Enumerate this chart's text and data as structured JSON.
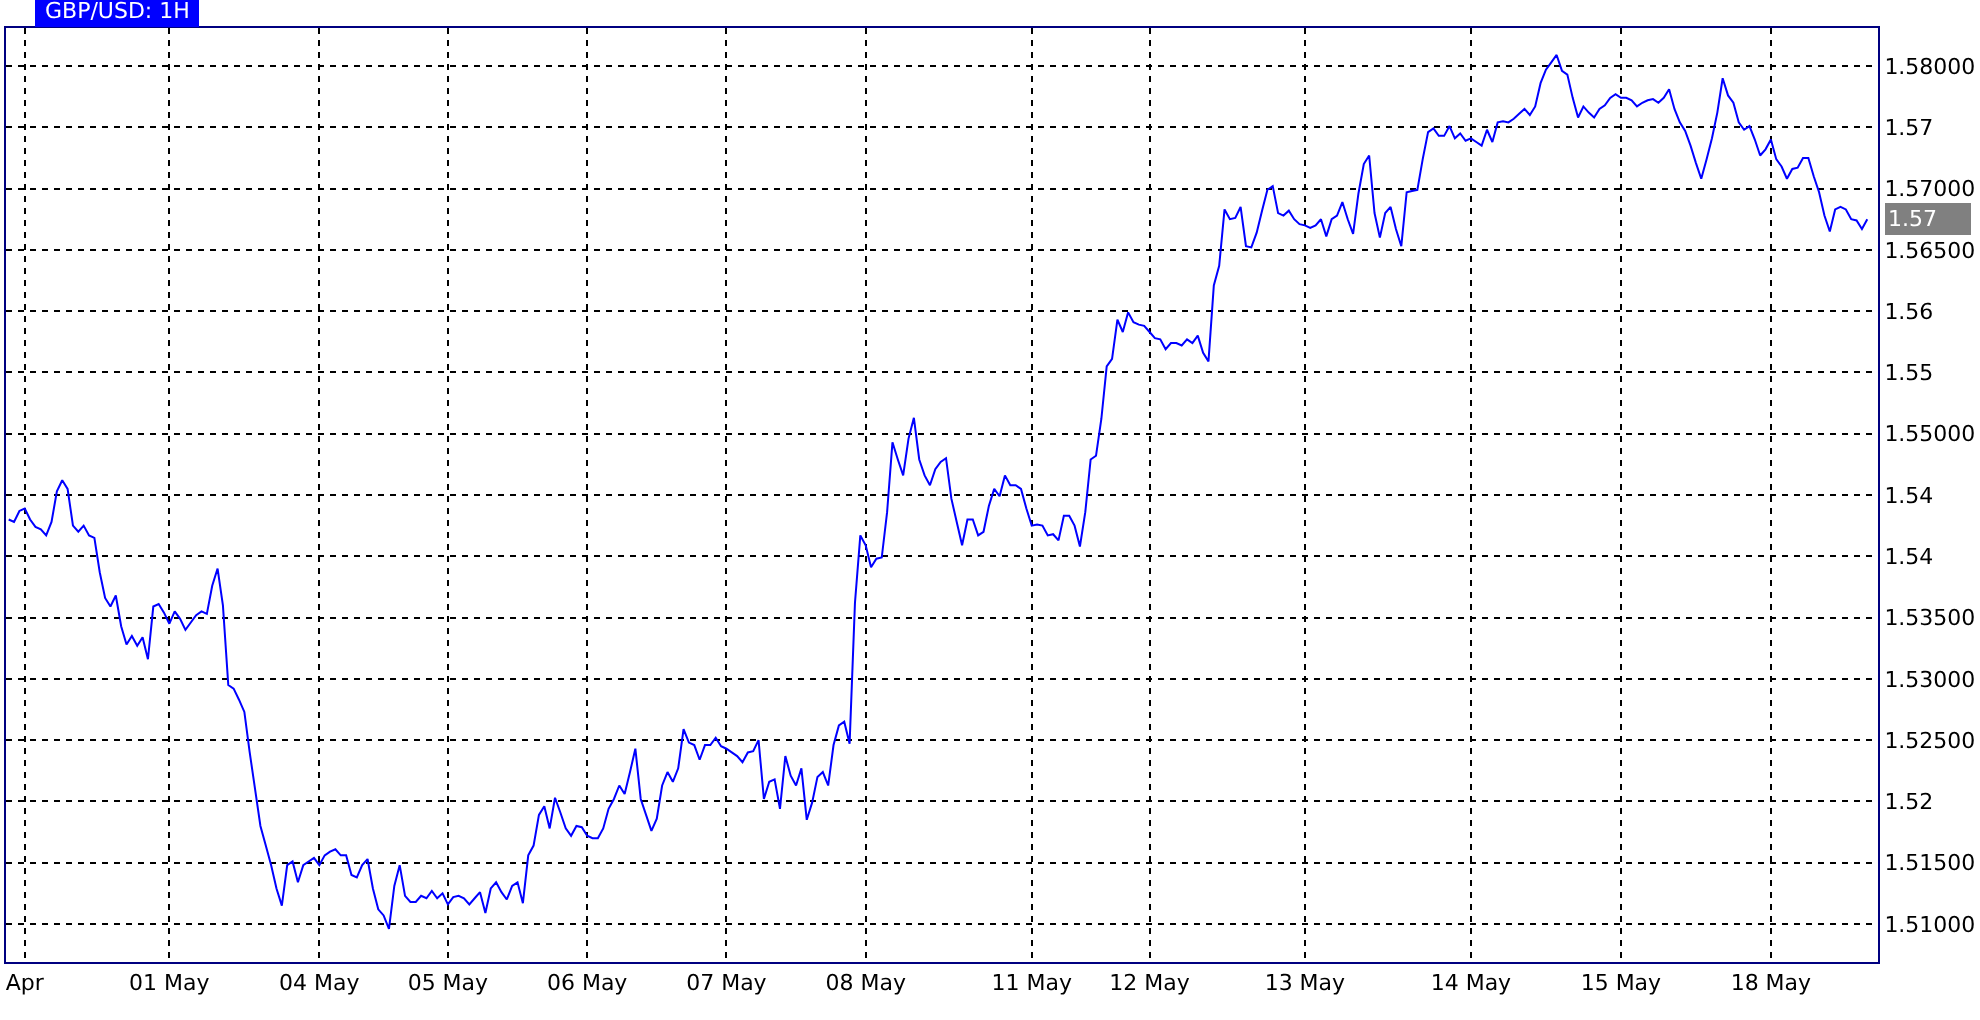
{
  "chart_data": {
    "type": "line",
    "title": "GBP/USD: 1H",
    "categories": [
      null,
      null,
      null,
      "Apr",
      null,
      null,
      null,
      null,
      null,
      null,
      null,
      null,
      null,
      null,
      null,
      null,
      null,
      null,
      null,
      null,
      null,
      null,
      null,
      null,
      null,
      null,
      null,
      null,
      null,
      null,
      "01 May",
      null,
      null,
      null,
      null,
      null,
      null,
      null,
      null,
      null,
      null,
      null,
      null,
      null,
      null,
      null,
      null,
      null,
      null,
      null,
      null,
      null,
      null,
      null,
      null,
      null,
      null,
      null,
      "04 May",
      null,
      null,
      null,
      null,
      null,
      null,
      null,
      null,
      null,
      null,
      null,
      null,
      null,
      null,
      null,
      null,
      null,
      null,
      null,
      null,
      null,
      null,
      null,
      "05 May",
      null,
      null,
      null,
      null,
      null,
      null,
      null,
      null,
      null,
      null,
      null,
      null,
      null,
      null,
      null,
      null,
      null,
      null,
      null,
      null,
      null,
      null,
      null,
      null,
      null,
      "06 May",
      null,
      null,
      null,
      null,
      null,
      null,
      null,
      null,
      null,
      null,
      null,
      null,
      null,
      null,
      null,
      null,
      null,
      null,
      null,
      null,
      null,
      null,
      null,
      null,
      null,
      "07 May",
      null,
      null,
      null,
      null,
      null,
      null,
      null,
      null,
      null,
      null,
      null,
      null,
      null,
      null,
      null,
      null,
      null,
      null,
      null,
      null,
      null,
      null,
      null,
      null,
      null,
      "08 May",
      null,
      null,
      null,
      null,
      null,
      null,
      null,
      null,
      null,
      null,
      null,
      null,
      null,
      null,
      null,
      null,
      null,
      null,
      null,
      null,
      null,
      null,
      null,
      null,
      null,
      null,
      null,
      null,
      null,
      null,
      "11 May",
      null,
      null,
      null,
      null,
      null,
      null,
      null,
      null,
      null,
      null,
      null,
      null,
      null,
      null,
      null,
      null,
      null,
      null,
      null,
      null,
      null,
      "12 May",
      null,
      null,
      null,
      null,
      null,
      null,
      null,
      null,
      null,
      null,
      null,
      null,
      null,
      null,
      null,
      null,
      null,
      null,
      null,
      null,
      null,
      null,
      null,
      null,
      null,
      null,
      null,
      null,
      "13 May",
      null,
      null,
      null,
      null,
      null,
      null,
      null,
      null,
      null,
      null,
      null,
      null,
      null,
      null,
      null,
      null,
      null,
      null,
      null,
      null,
      null,
      null,
      null,
      null,
      null,
      null,
      null,
      null,
      null,
      null,
      "14 May",
      null,
      null,
      null,
      null,
      null,
      null,
      null,
      null,
      null,
      null,
      null,
      null,
      null,
      null,
      null,
      null,
      null,
      null,
      null,
      null,
      null,
      null,
      null,
      null,
      null,
      null,
      null,
      "15 May",
      null,
      null,
      null,
      null,
      null,
      null,
      null,
      null,
      null,
      null,
      null,
      null,
      null,
      null,
      null,
      null,
      null,
      null,
      null,
      null,
      null,
      null,
      null,
      null,
      null,
      null,
      null,
      "18 May",
      null,
      null,
      null,
      null,
      null,
      null,
      null,
      null,
      null,
      null,
      null,
      null,
      null,
      null,
      null,
      null,
      null,
      null
    ],
    "series": [
      {
        "color": "#0000ff",
        "values": [
          1.543,
          1.5428,
          1.5437,
          1.5439,
          1.543,
          1.5424,
          1.5422,
          1.5417,
          1.5428,
          1.5453,
          1.5462,
          1.5455,
          1.5425,
          1.542,
          1.5425,
          1.5417,
          1.5415,
          1.5387,
          1.5366,
          1.5359,
          1.5368,
          1.5343,
          1.5328,
          1.5335,
          1.5327,
          1.5334,
          1.5316,
          1.5359,
          1.5361,
          1.5354,
          1.5345,
          1.5355,
          1.5349,
          1.534,
          1.5346,
          1.5352,
          1.5355,
          1.5353,
          1.5376,
          1.539,
          1.536,
          1.5295,
          1.5292,
          1.5283,
          1.5273,
          1.524,
          1.521,
          1.518,
          1.5164,
          1.5148,
          1.5129,
          1.5115,
          1.5148,
          1.5151,
          1.5134,
          1.5148,
          1.5151,
          1.5154,
          1.5148,
          1.5156,
          1.5159,
          1.5161,
          1.5156,
          1.5156,
          1.514,
          1.5138,
          1.5148,
          1.5153,
          1.5129,
          1.5112,
          1.5107,
          1.5096,
          1.5131,
          1.5148,
          1.5123,
          1.5118,
          1.5118,
          1.5123,
          1.5121,
          1.5127,
          1.5121,
          1.5125,
          1.5116,
          1.5122,
          1.5123,
          1.5121,
          1.5116,
          1.5121,
          1.5126,
          1.5109,
          1.5129,
          1.5134,
          1.5126,
          1.512,
          1.5131,
          1.5134,
          1.5117,
          1.5156,
          1.5164,
          1.5189,
          1.5196,
          1.5178,
          1.5203,
          1.5191,
          1.5178,
          1.5172,
          1.518,
          1.5179,
          1.5172,
          1.517,
          1.517,
          1.5178,
          1.5194,
          1.5202,
          1.5213,
          1.5206,
          1.5224,
          1.5243,
          1.5202,
          1.5189,
          1.5176,
          1.5186,
          1.5213,
          1.5224,
          1.5216,
          1.5227,
          1.5259,
          1.5248,
          1.5246,
          1.5234,
          1.5246,
          1.5246,
          1.5252,
          1.5245,
          1.5243,
          1.524,
          1.5237,
          1.5232,
          1.524,
          1.5241,
          1.525,
          1.5202,
          1.5216,
          1.5218,
          1.5194,
          1.5237,
          1.5221,
          1.5213,
          1.5227,
          1.5185,
          1.5199,
          1.522,
          1.5224,
          1.5213,
          1.5246,
          1.5262,
          1.5265,
          1.5247,
          1.5362,
          1.5417,
          1.5409,
          1.5391,
          1.5398,
          1.5399,
          1.5436,
          1.5493,
          1.5479,
          1.5466,
          1.5496,
          1.5513,
          1.5479,
          1.5466,
          1.5458,
          1.5471,
          1.5477,
          1.548,
          1.5447,
          1.5428,
          1.5409,
          1.543,
          1.543,
          1.5417,
          1.542,
          1.5441,
          1.5455,
          1.5449,
          1.5466,
          1.5458,
          1.5458,
          1.5455,
          1.5439,
          1.5425,
          1.5426,
          1.5425,
          1.5417,
          1.5418,
          1.5413,
          1.5433,
          1.5433,
          1.5425,
          1.5408,
          1.5436,
          1.5479,
          1.5482,
          1.5512,
          1.5555,
          1.5561,
          1.5593,
          1.5583,
          1.5599,
          1.5591,
          1.5589,
          1.5588,
          1.5583,
          1.5578,
          1.5577,
          1.5569,
          1.5574,
          1.5574,
          1.5572,
          1.5577,
          1.5574,
          1.558,
          1.5566,
          1.5559,
          1.5621,
          1.5637,
          1.5683,
          1.5675,
          1.5676,
          1.5685,
          1.5653,
          1.5652,
          1.5664,
          1.5682,
          1.5699,
          1.5702,
          1.568,
          1.5678,
          1.5682,
          1.5675,
          1.5671,
          1.567,
          1.5668,
          1.567,
          1.5675,
          1.5661,
          1.5675,
          1.5678,
          1.5689,
          1.5675,
          1.5663,
          1.5696,
          1.572,
          1.5727,
          1.568,
          1.566,
          1.568,
          1.5685,
          1.5667,
          1.5653,
          1.5697,
          1.5698,
          1.5699,
          1.5724,
          1.5746,
          1.5749,
          1.5743,
          1.5743,
          1.5751,
          1.5741,
          1.5745,
          1.5739,
          1.5741,
          1.5738,
          1.5735,
          1.5748,
          1.5738,
          1.5754,
          1.5755,
          1.5754,
          1.5757,
          1.5761,
          1.5765,
          1.576,
          1.5767,
          1.5786,
          1.5797,
          1.5803,
          1.5809,
          1.5796,
          1.5793,
          1.5774,
          1.5758,
          1.5767,
          1.5762,
          1.5758,
          1.5765,
          1.5768,
          1.5774,
          1.5777,
          1.5774,
          1.5774,
          1.5772,
          1.5767,
          1.577,
          1.5772,
          1.5773,
          1.577,
          1.5774,
          1.5781,
          1.5765,
          1.5754,
          1.5747,
          1.5735,
          1.5721,
          1.5708,
          1.5724,
          1.5741,
          1.5762,
          1.579,
          1.5776,
          1.577,
          1.5754,
          1.5748,
          1.5751,
          1.574,
          1.5727,
          1.5732,
          1.574,
          1.5724,
          1.5718,
          1.5708,
          1.5716,
          1.5717,
          1.5725,
          1.5725,
          1.571,
          1.5697,
          1.5678,
          1.5665,
          1.5683,
          1.5685,
          1.5683,
          1.5675,
          1.5674,
          1.5667,
          1.5675
        ]
      }
    ],
    "ylim": [
      1.5069,
      1.5831
    ],
    "yticks": [
      {
        "value": 1.58,
        "label": "1.58000"
      },
      {
        "value": 1.575,
        "label": "1.57"
      },
      {
        "value": 1.57,
        "label": "1.57000"
      },
      {
        "value": 1.565,
        "label": "1.56500"
      },
      1.56,
      {
        "value": 1.555,
        "label": "1.55"
      },
      {
        "value": 1.55,
        "label": "1.55000"
      },
      {
        "value": 1.545,
        "label": "1.54"
      },
      1.54,
      {
        "value": 1.535,
        "label": "1.53500"
      },
      {
        "value": 1.53,
        "label": "1.53000"
      },
      {
        "value": 1.525,
        "label": "1.52500"
      },
      1.52,
      {
        "value": 1.515,
        "label": "1.51500"
      },
      {
        "value": 1.51,
        "label": "1.51000"
      }
    ],
    "annotations": [
      "1.57"
    ],
    "grid": true
  }
}
